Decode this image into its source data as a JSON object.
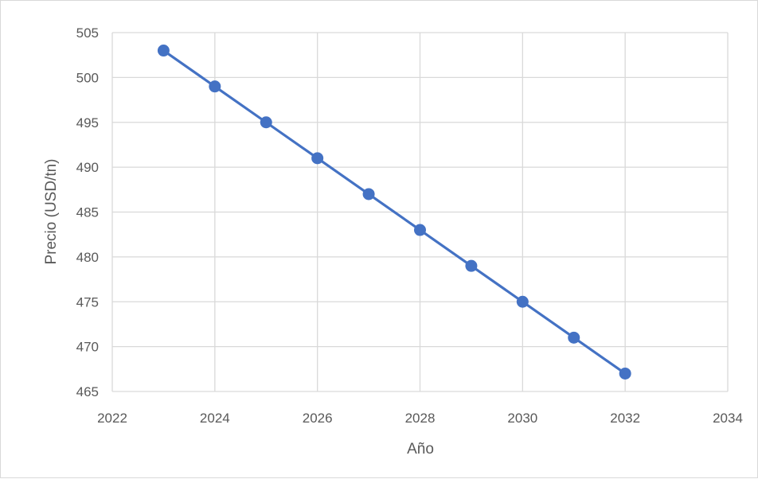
{
  "chart_data": {
    "type": "scatter",
    "title": "",
    "xlabel": "Año",
    "ylabel": "Precio (USD/tn)",
    "xlim": [
      2022,
      2034
    ],
    "ylim": [
      465,
      505
    ],
    "x_ticks": [
      2022,
      2024,
      2026,
      2028,
      2030,
      2032,
      2034
    ],
    "y_ticks": [
      465,
      470,
      475,
      480,
      485,
      490,
      495,
      500,
      505
    ],
    "grid": true,
    "legend": "none",
    "series": [
      {
        "color": "#4472c4",
        "marker": "circle",
        "line": true,
        "x": [
          2023,
          2024,
          2025,
          2026,
          2027,
          2028,
          2029,
          2030,
          2031,
          2032
        ],
        "y": [
          503,
          499,
          495,
          491,
          487,
          483,
          479,
          475,
          471,
          467
        ]
      }
    ]
  },
  "colors": {
    "series": "#4472c4",
    "grid": "#d9d9d9",
    "text": "#595959"
  }
}
